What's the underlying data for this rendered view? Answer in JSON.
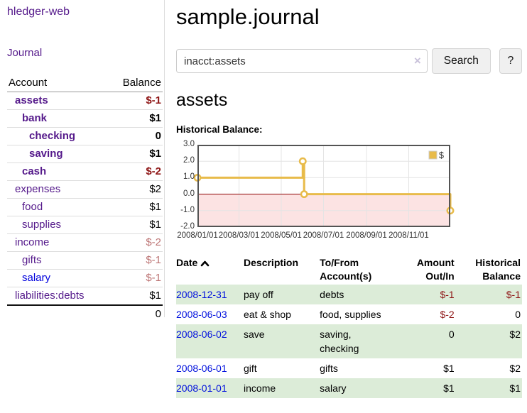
{
  "app": {
    "brand": "hledger-web",
    "nav": {
      "journal": "Journal"
    }
  },
  "sidebar": {
    "headers": {
      "account": "Account",
      "balance": "Balance"
    },
    "accounts": [
      {
        "name": "assets",
        "depth": 1,
        "strong": true,
        "balance": "$-1",
        "neg": "dark"
      },
      {
        "name": "bank",
        "depth": 2,
        "strong": true,
        "balance": "$1",
        "neg": ""
      },
      {
        "name": "checking",
        "depth": 3,
        "strong": true,
        "balance": "0",
        "neg": ""
      },
      {
        "name": "saving",
        "depth": 3,
        "strong": true,
        "balance": "$1",
        "neg": ""
      },
      {
        "name": "cash",
        "depth": 2,
        "strong": true,
        "balance": "$-2",
        "neg": "dark"
      },
      {
        "name": "expenses",
        "depth": 1,
        "strong": false,
        "balance": "$2",
        "neg": ""
      },
      {
        "name": "food",
        "depth": 2,
        "strong": false,
        "balance": "$1",
        "neg": ""
      },
      {
        "name": "supplies",
        "depth": 2,
        "strong": false,
        "balance": "$1",
        "neg": ""
      },
      {
        "name": "income",
        "depth": 1,
        "strong": false,
        "balance": "$-2",
        "neg": "light"
      },
      {
        "name": "gifts",
        "depth": 2,
        "strong": false,
        "balance": "$-1",
        "neg": "light"
      },
      {
        "name": "salary",
        "depth": 2,
        "strong": false,
        "balance": "$-1",
        "neg": "light",
        "link_hex": "#0000dd"
      },
      {
        "name": "liabilities:debts",
        "depth": 1,
        "strong": false,
        "balance": "$1",
        "neg": ""
      }
    ],
    "total": "0"
  },
  "main": {
    "title": "sample.journal",
    "search": {
      "value": "inacct:assets",
      "clear_icon": "×",
      "search_button": "Search",
      "help_button": "?"
    },
    "account_heading": "assets",
    "chart_title": "Historical Balance:"
  },
  "chart_data": {
    "type": "line",
    "step": true,
    "title": "Historical Balance",
    "series": [
      {
        "name": "$",
        "color": "#e8bb4a",
        "points": [
          [
            "2008-01-01",
            1.0
          ],
          [
            "2008-06-01",
            2.0
          ],
          [
            "2008-06-03",
            0.0
          ],
          [
            "2008-12-31",
            -1.0
          ]
        ]
      }
    ],
    "xlim": [
      "2008-01-01",
      "2008-12-31"
    ],
    "ylim": [
      -2.0,
      3.0
    ],
    "y_ticks": [
      "3.0",
      "2.0",
      "1.0",
      "0.0",
      "-1.0",
      "-2.0"
    ],
    "x_ticks": [
      "2008/01/01",
      "2008/03/01",
      "2008/05/01",
      "2008/07/01",
      "2008/09/01",
      "2008/11/01"
    ],
    "legend": {
      "label": "$",
      "position": "top-right"
    },
    "grid": true,
    "negative_region_color": "#fce3e3",
    "zero_line_color": "#8b0000",
    "marker": "open-circle"
  },
  "register": {
    "headers": [
      "Date",
      "Description",
      "To/From Account(s)",
      "Amount Out/In",
      "Historical Balance"
    ],
    "sort_icon": "chevron-up",
    "rows": [
      {
        "date": "2008-12-31",
        "description": "pay off",
        "accounts": "debts",
        "amount": "$-1",
        "amount_neg": true,
        "balance": "$-1",
        "balance_neg": true,
        "shaded": true
      },
      {
        "date": "2008-06-03",
        "description": "eat & shop",
        "accounts": "food, supplies",
        "amount": "$-2",
        "amount_neg": true,
        "balance": "0",
        "balance_neg": false,
        "shaded": false
      },
      {
        "date": "2008-06-02",
        "description": "save",
        "accounts": "saving,\nchecking",
        "amount": "0",
        "amount_neg": false,
        "balance": "$2",
        "balance_neg": false,
        "shaded": true
      },
      {
        "date": "2008-06-01",
        "description": "gift",
        "accounts": "gifts",
        "amount": "$1",
        "amount_neg": false,
        "balance": "$2",
        "balance_neg": false,
        "shaded": false
      },
      {
        "date": "2008-01-01",
        "description": "income",
        "accounts": "salary",
        "amount": "$1",
        "amount_neg": false,
        "balance": "$1",
        "balance_neg": false,
        "shaded": true
      }
    ]
  },
  "colors": {
    "link_purple": "#551a8b",
    "link_blue": "#0010dd",
    "negative_dark": "#8e1515",
    "negative_light": "#bd7575",
    "row_stripe_green": "#dcecd8",
    "chart_yellow": "#e8bb4a"
  }
}
